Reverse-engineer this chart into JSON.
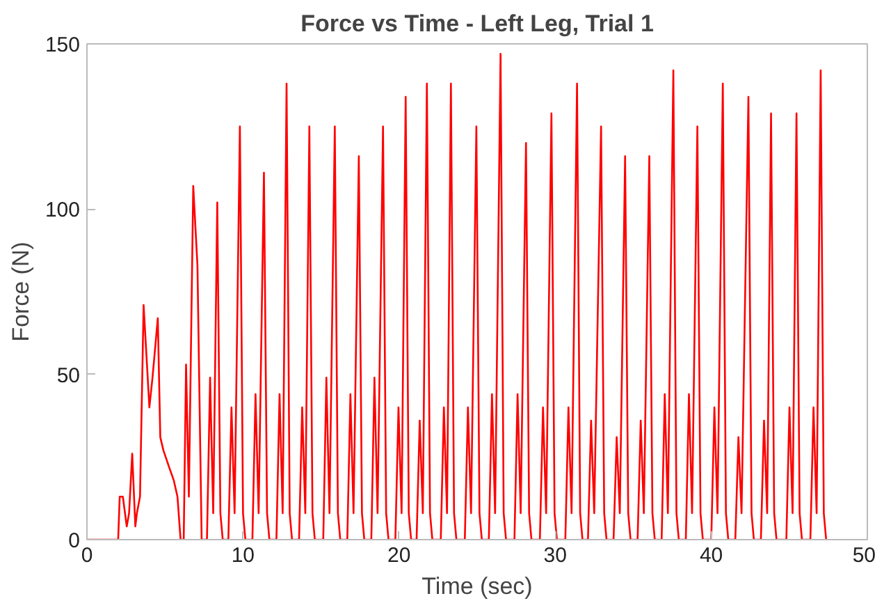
{
  "chart_data": {
    "type": "line",
    "title": "Force vs Time - Left Leg, Trial 1",
    "xlabel": "Time (sec)",
    "ylabel": "Force (N)",
    "xlim": [
      0,
      50
    ],
    "ylim": [
      0,
      150
    ],
    "xticks": [
      0,
      10,
      20,
      30,
      40,
      50
    ],
    "yticks": [
      0,
      50,
      100,
      150
    ],
    "line_style": "solid",
    "series": [
      {
        "color": "#ff0000",
        "x": [
          0,
          2.0,
          2.1,
          2.3,
          2.55,
          2.7,
          2.9,
          3.1,
          3.2,
          3.4,
          3.63,
          4.0,
          4.2,
          4.54,
          4.7,
          4.9,
          5.26,
          5.56,
          5.8,
          6.0,
          6.2,
          6.35,
          6.53,
          6.81,
          7.08,
          7.35,
          7.69,
          7.89,
          8.09,
          8.35,
          8.55,
          8.7,
          9.06,
          9.26,
          9.46,
          9.8,
          10.0,
          10.15,
          10.6,
          10.8,
          11.0,
          11.34,
          11.54,
          11.69,
          12.14,
          12.34,
          12.54,
          12.79,
          12.99,
          13.14,
          13.59,
          13.79,
          13.99,
          14.25,
          14.45,
          14.6,
          15.14,
          15.34,
          15.54,
          15.88,
          16.08,
          16.23,
          16.68,
          16.88,
          17.08,
          17.42,
          17.62,
          17.77,
          18.22,
          18.42,
          18.62,
          18.97,
          19.17,
          19.32,
          19.76,
          19.96,
          20.16,
          20.42,
          20.62,
          20.77,
          21.12,
          21.32,
          21.52,
          21.78,
          21.98,
          22.13,
          22.67,
          22.87,
          23.07,
          23.32,
          23.52,
          23.67,
          24.21,
          24.41,
          24.61,
          24.95,
          25.15,
          25.3,
          25.75,
          25.95,
          26.15,
          26.5,
          26.7,
          26.85,
          27.39,
          27.59,
          27.79,
          28.13,
          28.33,
          28.48,
          29.02,
          29.22,
          29.42,
          29.76,
          29.96,
          30.11,
          30.65,
          30.85,
          31.05,
          31.4,
          31.6,
          31.75,
          32.1,
          32.3,
          32.5,
          32.94,
          33.14,
          33.29,
          33.74,
          33.94,
          34.14,
          34.48,
          34.68,
          34.83,
          35.28,
          35.48,
          35.68,
          36.03,
          36.23,
          36.38,
          36.82,
          37.02,
          37.22,
          37.57,
          37.77,
          37.92,
          38.37,
          38.57,
          38.77,
          39.11,
          39.31,
          39.46,
          40.0,
          40.2,
          40.4,
          40.74,
          40.94,
          41.09,
          41.54,
          41.74,
          41.94,
          42.38,
          42.58,
          42.73,
          43.18,
          43.38,
          43.58,
          43.83,
          44.03,
          44.18,
          44.81,
          45.01,
          45.21,
          45.46,
          45.66,
          45.81,
          46.35,
          46.55,
          46.75,
          47.01,
          47.21,
          47.36
        ],
        "values": [
          0,
          0,
          13,
          13,
          4,
          8,
          26,
          4,
          8,
          13,
          71,
          40,
          49,
          67,
          31,
          27,
          22,
          18,
          13,
          0,
          0,
          53,
          13,
          107,
          83,
          0,
          0,
          49,
          8,
          102,
          8,
          0,
          0,
          40,
          8,
          125,
          8,
          0,
          0,
          44,
          8,
          111,
          8,
          0,
          0,
          44,
          8,
          138,
          8,
          0,
          0,
          40,
          8,
          125,
          8,
          0,
          0,
          49,
          8,
          125,
          8,
          0,
          0,
          44,
          8,
          116,
          8,
          0,
          0,
          49,
          8,
          125,
          8,
          0,
          0,
          40,
          8,
          134,
          8,
          0,
          0,
          36,
          8,
          138,
          8,
          0,
          0,
          40,
          8,
          138,
          8,
          0,
          0,
          40,
          8,
          125,
          8,
          0,
          0,
          44,
          8,
          147,
          8,
          0,
          0,
          44,
          8,
          120,
          8,
          0,
          0,
          40,
          8,
          129,
          8,
          0,
          0,
          40,
          8,
          138,
          8,
          0,
          0,
          36,
          8,
          125,
          8,
          0,
          0,
          31,
          8,
          116,
          8,
          0,
          0,
          36,
          8,
          116,
          8,
          0,
          0,
          44,
          8,
          142,
          8,
          0,
          0,
          44,
          8,
          125,
          8,
          0,
          0,
          40,
          8,
          138,
          8,
          0,
          0,
          31,
          8,
          134,
          8,
          0,
          0,
          36,
          8,
          129,
          8,
          0,
          0,
          40,
          8,
          129,
          8,
          0,
          0,
          40,
          8,
          142,
          8,
          0
        ]
      }
    ]
  }
}
